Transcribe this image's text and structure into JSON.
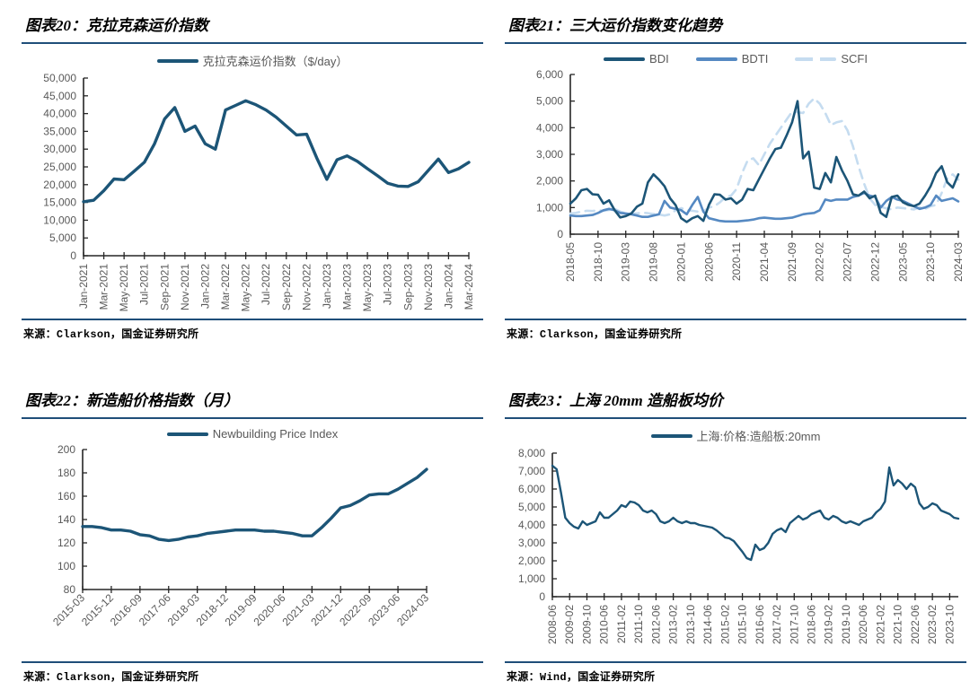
{
  "colors": {
    "accent_rule": "#1F4E79",
    "line_dark": "#1C5577",
    "line_medium": "#5589C2",
    "line_light": "#C5DCF0",
    "axis": "#262626",
    "tick_label": "#595959",
    "legend_text": "#595959"
  },
  "panels": [
    {
      "title": "图表20：克拉克森运价指数",
      "source": "来源：Clarkson，国金证券研究所"
    },
    {
      "title": "图表21：三大运价指数变化趋势",
      "source": "来源：Clarkson，国金证券研究所"
    },
    {
      "title": "图表22：新造船价格指数（月）",
      "source": "来源：Clarkson，国金证券研究所"
    },
    {
      "title": "图表23：上海 20mm 造船板均价",
      "source": "来源：Wind，国金证券研究所"
    }
  ],
  "chart_data": [
    {
      "type": "line",
      "title": "克拉克森运价指数",
      "ylim": [
        0,
        50000
      ],
      "ytick_values": [
        0,
        5000,
        10000,
        15000,
        20000,
        25000,
        30000,
        35000,
        40000,
        45000,
        50000
      ],
      "ytick_labels": [
        "0",
        "5,000",
        "10,000",
        "15,000",
        "20,000",
        "25,000",
        "30,000",
        "35,000",
        "40,000",
        "45,000",
        "50,000"
      ],
      "xtick_step": 2,
      "xtick_labels": [
        "Jan-2021",
        "Mar-2021",
        "May-2021",
        "Jul-2021",
        "Sep-2021",
        "Nov-2021",
        "Jan-2022",
        "Mar-2022",
        "May-2022",
        "Jul-2022",
        "Sep-2022",
        "Nov-2022",
        "Jan-2023",
        "Mar-2023",
        "May-2023",
        "Jul-2023",
        "Sep-2023",
        "Nov-2023",
        "Jan-2024",
        "Mar-2024"
      ],
      "legend_position": "top",
      "grid": false,
      "series": [
        {
          "name": "克拉克森运价指数（$/day）",
          "color": "#1C5577",
          "dash": false,
          "values": [
            15200,
            15600,
            18300,
            21600,
            21400,
            23800,
            26300,
            31500,
            38500,
            41700,
            35000,
            36500,
            31500,
            30000,
            41000,
            42300,
            43600,
            42500,
            41000,
            39000,
            36500,
            34000,
            34200,
            27500,
            21500,
            27000,
            28100,
            26600,
            24500,
            22500,
            20400,
            19600,
            19500,
            20800,
            24000,
            27200,
            23400,
            24500,
            26300
          ]
        }
      ]
    },
    {
      "type": "line",
      "title": "三大运价指数变化趋势",
      "ylim": [
        0,
        6000
      ],
      "ytick_values": [
        0,
        1000,
        2000,
        3000,
        4000,
        5000,
        6000
      ],
      "ytick_labels": [
        "0",
        "1,000",
        "2,000",
        "3,000",
        "4,000",
        "5,000",
        "6,000"
      ],
      "xtick_step": 5,
      "xtick_labels": [
        "2018-05",
        "2018-10",
        "2019-03",
        "2019-08",
        "2020-01",
        "2020-06",
        "2020-11",
        "2021-04",
        "2021-09",
        "2022-02",
        "2022-07",
        "2022-12",
        "2023-05",
        "2023-10",
        "2024-03"
      ],
      "legend_position": "top",
      "grid": false,
      "series": [
        {
          "name": "BDI",
          "color": "#1C5577",
          "dash": false,
          "values": [
            1150,
            1350,
            1650,
            1700,
            1500,
            1480,
            1150,
            1270,
            900,
            630,
            680,
            780,
            1030,
            1150,
            1950,
            2250,
            2050,
            1800,
            1350,
            1090,
            600,
            460,
            600,
            680,
            500,
            1100,
            1500,
            1480,
            1300,
            1350,
            1150,
            1300,
            1700,
            1650,
            2050,
            2450,
            2850,
            3200,
            3250,
            3700,
            4200,
            5000,
            2850,
            3100,
            1750,
            1700,
            2300,
            1950,
            2900,
            2400,
            2000,
            1500,
            1450,
            1600,
            1350,
            1450,
            800,
            650,
            1400,
            1450,
            1200,
            1100,
            1050,
            1150,
            1450,
            1800,
            2300,
            2550,
            1950,
            1750,
            2250
          ]
        },
        {
          "name": "BDTI",
          "color": "#5589C2",
          "dash": false,
          "values": [
            700,
            680,
            680,
            700,
            720,
            800,
            900,
            950,
            900,
            800,
            780,
            750,
            700,
            650,
            650,
            700,
            750,
            1250,
            1000,
            950,
            900,
            750,
            1100,
            1400,
            850,
            600,
            550,
            500,
            480,
            480,
            480,
            500,
            520,
            550,
            600,
            620,
            600,
            580,
            580,
            600,
            620,
            680,
            750,
            780,
            800,
            900,
            1300,
            1250,
            1300,
            1300,
            1300,
            1400,
            1450,
            1550,
            1450,
            1400,
            1000,
            1250,
            1400,
            1300,
            1250,
            1150,
            1050,
            950,
            1000,
            1100,
            1450,
            1250,
            1300,
            1350,
            1230
          ]
        },
        {
          "name": "SCFI",
          "color": "#C5DCF0",
          "dash": true,
          "values": [
            780,
            800,
            850,
            880,
            870,
            900,
            880,
            910,
            950,
            850,
            780,
            780,
            780,
            810,
            790,
            760,
            740,
            700,
            750,
            900,
            980,
            900,
            880,
            850,
            850,
            1000,
            1050,
            1200,
            1400,
            1450,
            1700,
            2300,
            2780,
            2850,
            2600,
            3000,
            3400,
            3700,
            4000,
            4300,
            4600,
            4580,
            4550,
            4900,
            5100,
            4900,
            4550,
            4100,
            4200,
            4250,
            3900,
            3300,
            2550,
            1900,
            1350,
            1100,
            1030,
            970,
            930,
            1000,
            980,
            950,
            930,
            1010,
            950,
            1050,
            1100,
            1550,
            2100,
            2250,
            2050
          ]
        }
      ]
    },
    {
      "type": "line",
      "title": "新造船价格指数（月）",
      "ylim": [
        80,
        200
      ],
      "ytick_values": [
        80,
        100,
        120,
        140,
        160,
        180,
        200
      ],
      "ytick_labels": [
        "80",
        "100",
        "120",
        "140",
        "160",
        "180",
        "200"
      ],
      "xtick_step": 3,
      "xtick_labels": [
        "2015-03",
        "2015-12",
        "2016-09",
        "2017-06",
        "2018-03",
        "2018-12",
        "2019-09",
        "2020-06",
        "2021-03",
        "2021-12",
        "2022-09",
        "2023-06",
        "2024-03"
      ],
      "legend_position": "top",
      "grid": false,
      "series": [
        {
          "name": "Newbuilding Price Index",
          "color": "#1C5577",
          "dash": false,
          "values": [
            134,
            134,
            133,
            131,
            131,
            130,
            127,
            126,
            123,
            122,
            123,
            125,
            126,
            128,
            129,
            130,
            131,
            131,
            131,
            130,
            130,
            129,
            128,
            126,
            126,
            133,
            141,
            150,
            152,
            156,
            161,
            162,
            162,
            166,
            171,
            176,
            183
          ]
        }
      ]
    },
    {
      "type": "line",
      "title": "上海 20mm 造船板均价",
      "ylim": [
        0,
        8000
      ],
      "ytick_values": [
        0,
        1000,
        2000,
        3000,
        4000,
        5000,
        6000,
        7000,
        8000
      ],
      "ytick_labels": [
        "0",
        "1,000",
        "2,000",
        "3,000",
        "4,000",
        "5,000",
        "6,000",
        "7,000",
        "8,000"
      ],
      "xtick_step": 4,
      "xtick_labels": [
        "2008-06",
        "2009-02",
        "2009-10",
        "2010-06",
        "2011-02",
        "2011-10",
        "2012-06",
        "2013-02",
        "2013-10",
        "2014-06",
        "2015-02",
        "2015-10",
        "2016-06",
        "2017-02",
        "2017-10",
        "2018-06",
        "2019-02",
        "2019-10",
        "2020-06",
        "2021-02",
        "2021-10",
        "2022-06",
        "2023-02",
        "2023-10"
      ],
      "legend_position": "top",
      "grid": false,
      "series": [
        {
          "name": "上海:价格:造船板:20mm",
          "color": "#1C5577",
          "dash": false,
          "values": [
            7300,
            7100,
            5800,
            4400,
            4100,
            3900,
            3800,
            4200,
            4000,
            4100,
            4200,
            4700,
            4400,
            4400,
            4600,
            4800,
            5100,
            5000,
            5300,
            5250,
            5100,
            4800,
            4700,
            4800,
            4600,
            4200,
            4100,
            4200,
            4400,
            4200,
            4100,
            4200,
            4100,
            4100,
            4000,
            3950,
            3900,
            3850,
            3700,
            3500,
            3300,
            3250,
            3100,
            2800,
            2500,
            2150,
            2050,
            2900,
            2600,
            2700,
            3000,
            3500,
            3700,
            3800,
            3600,
            4100,
            4300,
            4500,
            4300,
            4400,
            4600,
            4700,
            4800,
            4400,
            4300,
            4500,
            4400,
            4200,
            4100,
            4200,
            4100,
            4000,
            4200,
            4300,
            4400,
            4700,
            4900,
            5300,
            7200,
            6200,
            6500,
            6300,
            6000,
            6300,
            6100,
            5200,
            4900,
            5000,
            5200,
            5100,
            4800,
            4700,
            4600,
            4400,
            4350
          ]
        }
      ]
    }
  ]
}
